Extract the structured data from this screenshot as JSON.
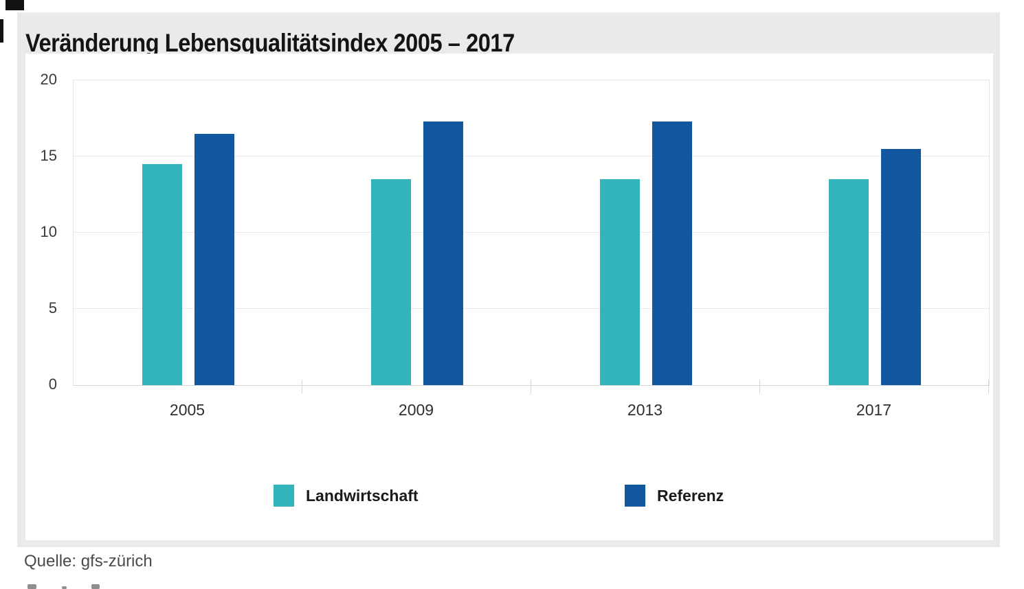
{
  "chart_data": {
    "type": "bar",
    "title": "Veränderung Lebensqualitätsindex 2005 – 2017",
    "categories": [
      "2005",
      "2009",
      "2013",
      "2017"
    ],
    "series": [
      {
        "name": "Landwirtschaft",
        "color": "#31b5ba",
        "values": [
          14.5,
          13.5,
          13.5,
          13.5
        ]
      },
      {
        "name": "Referenz",
        "color": "#1158a1",
        "values": [
          16.5,
          17.3,
          17.3,
          15.5
        ]
      }
    ],
    "xlabel": "",
    "ylabel": "",
    "ylim": [
      0,
      20
    ],
    "yticks": [
      0,
      5,
      10,
      15,
      20
    ],
    "grid": true,
    "legend_position": "bottom"
  },
  "source": {
    "label": "Quelle: gfs-zürich"
  },
  "colors": {
    "panel_bg": "#eaeaea",
    "card_bg": "#ffffff",
    "grid_line": "#e8e8e8",
    "axis_line": "#d4d4d4",
    "title_text": "#141414",
    "tick_text": "#3a3a3a",
    "source_text": "#4a4a4a"
  }
}
